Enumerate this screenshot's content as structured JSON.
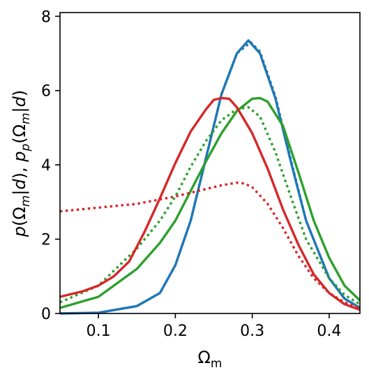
{
  "chart_data": {
    "type": "line",
    "xlabel": "Ωm",
    "ylabel": "p(Ωm|d), pp(Ωm|d)",
    "xlim": [
      0.05,
      0.44
    ],
    "ylim": [
      0,
      8.1
    ],
    "xticks": [
      0.1,
      0.2,
      0.3,
      0.4
    ],
    "xtick_labels": [
      "0.1",
      "0.2",
      "0.3",
      "0.4"
    ],
    "yticks": [
      0,
      2,
      4,
      6,
      8
    ],
    "ytick_labels": [
      "0",
      "2",
      "4",
      "6",
      "8"
    ],
    "grid": false,
    "series": [
      {
        "color": "#1f77b4",
        "style": "solid",
        "x": [
          0.05,
          0.1,
          0.15,
          0.18,
          0.2,
          0.22,
          0.24,
          0.26,
          0.28,
          0.295,
          0.31,
          0.33,
          0.35,
          0.37,
          0.4,
          0.42,
          0.44
        ],
        "y": [
          0.0,
          0.02,
          0.2,
          0.55,
          1.3,
          2.5,
          4.2,
          5.9,
          7.0,
          7.35,
          7.0,
          5.8,
          4.1,
          2.5,
          0.95,
          0.4,
          0.15
        ]
      },
      {
        "color": "#1f77b4",
        "style": "dotted",
        "x": [
          0.05,
          0.1,
          0.15,
          0.18,
          0.2,
          0.22,
          0.24,
          0.26,
          0.28,
          0.298,
          0.31,
          0.33,
          0.35,
          0.37,
          0.4,
          0.42,
          0.44
        ],
        "y": [
          0.0,
          0.02,
          0.2,
          0.55,
          1.3,
          2.5,
          4.2,
          5.9,
          7.0,
          7.3,
          7.05,
          5.85,
          4.15,
          2.5,
          0.95,
          0.4,
          0.15
        ]
      },
      {
        "color": "#2ca02c",
        "style": "solid",
        "x": [
          0.05,
          0.1,
          0.15,
          0.18,
          0.2,
          0.22,
          0.24,
          0.26,
          0.28,
          0.3,
          0.31,
          0.32,
          0.34,
          0.36,
          0.38,
          0.4,
          0.42,
          0.44
        ],
        "y": [
          0.15,
          0.45,
          1.2,
          1.9,
          2.5,
          3.3,
          4.1,
          4.85,
          5.45,
          5.78,
          5.8,
          5.7,
          5.05,
          3.8,
          2.5,
          1.5,
          0.75,
          0.35
        ]
      },
      {
        "color": "#2ca02c",
        "style": "dotted",
        "x": [
          0.05,
          0.1,
          0.15,
          0.18,
          0.2,
          0.22,
          0.24,
          0.26,
          0.28,
          0.295,
          0.31,
          0.33,
          0.35,
          0.37,
          0.4,
          0.42,
          0.44
        ],
        "y": [
          0.3,
          0.75,
          1.75,
          2.5,
          3.15,
          3.95,
          4.65,
          5.2,
          5.5,
          5.55,
          5.3,
          4.35,
          3.15,
          2.0,
          0.95,
          0.5,
          0.25
        ]
      },
      {
        "color": "#d62728",
        "style": "solid",
        "x": [
          0.05,
          0.08,
          0.1,
          0.12,
          0.14,
          0.16,
          0.18,
          0.2,
          0.22,
          0.24,
          0.25,
          0.26,
          0.27,
          0.28,
          0.3,
          0.32,
          0.34,
          0.36,
          0.38,
          0.4,
          0.42,
          0.44
        ],
        "y": [
          0.45,
          0.6,
          0.75,
          1.0,
          1.4,
          2.2,
          3.1,
          4.05,
          4.9,
          5.5,
          5.75,
          5.8,
          5.78,
          5.55,
          4.85,
          3.9,
          2.8,
          1.85,
          1.05,
          0.55,
          0.25,
          0.1
        ]
      },
      {
        "color": "#d62728",
        "style": "dotted",
        "x": [
          0.05,
          0.1,
          0.15,
          0.2,
          0.24,
          0.26,
          0.28,
          0.29,
          0.3,
          0.32,
          0.34,
          0.36,
          0.38,
          0.4,
          0.42,
          0.44
        ],
        "y": [
          2.75,
          2.85,
          2.95,
          3.15,
          3.35,
          3.45,
          3.52,
          3.5,
          3.4,
          2.95,
          2.3,
          1.55,
          0.95,
          0.55,
          0.3,
          0.15
        ]
      }
    ]
  }
}
